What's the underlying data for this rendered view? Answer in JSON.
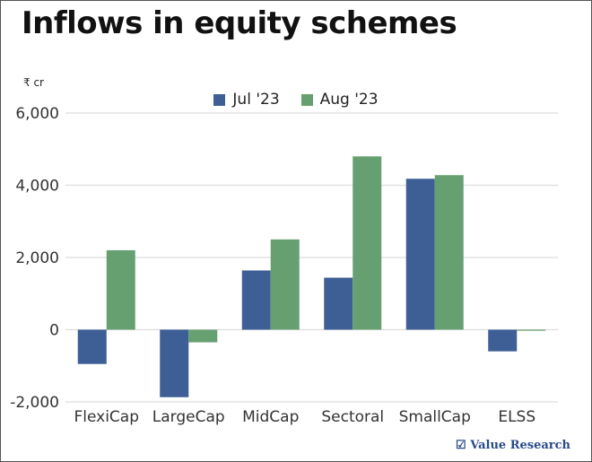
{
  "chart_data": {
    "type": "bar",
    "title": "Inflows in equity schemes",
    "ylabel": "₹ cr",
    "categories": [
      "FlexiCap",
      "LargeCap",
      "MidCap",
      "Sectoral",
      "SmallCap",
      "ELSS"
    ],
    "series": [
      {
        "name": "Jul '23",
        "color": "#3d5f96",
        "values": [
          -950,
          -1870,
          1640,
          1440,
          4180,
          -600
        ]
      },
      {
        "name": "Aug '23",
        "color": "#67a070",
        "values": [
          2200,
          -350,
          2500,
          4800,
          4280,
          -30
        ]
      }
    ],
    "ylim": [
      -2000,
      6000
    ],
    "yticks": [
      -2000,
      0,
      2000,
      4000,
      6000
    ],
    "ytick_labels": [
      "-2,000",
      "0",
      "2,000",
      "4,000",
      "6,000"
    ],
    "grid": true,
    "legend": "top-center"
  },
  "branding": {
    "logo": "Value Research"
  }
}
